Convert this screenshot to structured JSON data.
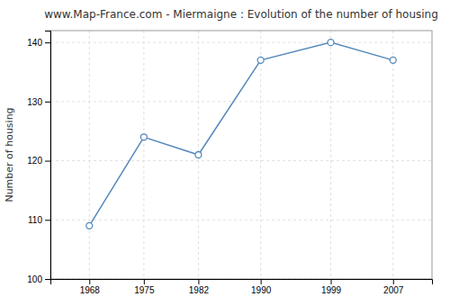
{
  "chart_data": {
    "type": "line",
    "title": "www.Map-France.com - Miermaigne : Evolution of the number of housing",
    "ylabel": "Number of housing",
    "x": [
      1968,
      1975,
      1982,
      1990,
      1999,
      2007
    ],
    "values": [
      109,
      124,
      121,
      137,
      140,
      137
    ],
    "xlim": [
      1963,
      2012
    ],
    "xticks": [
      1968,
      1975,
      1982,
      1990,
      1999,
      2007
    ],
    "ylim": [
      100,
      142
    ],
    "yticks": [
      100,
      110,
      120,
      130,
      140
    ],
    "color": "#5588bb",
    "marker": "circle",
    "grid": true
  }
}
